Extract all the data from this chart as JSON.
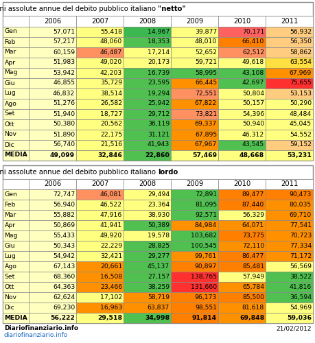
{
  "columns": [
    "",
    "2006",
    "2007",
    "2008",
    "2009",
    "2010",
    "2011"
  ],
  "rows_netto": [
    [
      "Gen",
      "57,071",
      "55,418",
      "14,967",
      "39,877",
      "70,171",
      "56,932"
    ],
    [
      "Feb",
      "57,217",
      "48,060",
      "18,353",
      "48,010",
      "66,410",
      "56,350"
    ],
    [
      "Mar",
      "60,159",
      "46,487",
      "17,214",
      "52,652",
      "62,512",
      "58,862"
    ],
    [
      "Apr",
      "51,983",
      "49,020",
      "20,173",
      "59,721",
      "49,618",
      "63,554"
    ],
    [
      "Mag",
      "53,942",
      "42,203",
      "16,739",
      "58,995",
      "43,108",
      "67,969"
    ],
    [
      "Giu",
      "46,855",
      "35,729",
      "23,595",
      "66,445",
      "42,697",
      "75,655"
    ],
    [
      "Lug",
      "46,832",
      "38,514",
      "19,294",
      "72,551",
      "50,804",
      "53,153"
    ],
    [
      "Ago",
      "51,276",
      "26,582",
      "25,942",
      "67,822",
      "50,157",
      "50,290"
    ],
    [
      "Set",
      "51,940",
      "18,727",
      "29,712",
      "73,821",
      "54,396",
      "48,484"
    ],
    [
      "Ott",
      "50,380",
      "20,562",
      "36,119",
      "69,337",
      "50,940",
      "45,045"
    ],
    [
      "Nov",
      "51,890",
      "22,175",
      "31,121",
      "67,895",
      "46,312",
      "54,552"
    ],
    [
      "Dic",
      "56,740",
      "21,516",
      "41,943",
      "67,967",
      "43,545",
      "59,152"
    ],
    [
      "MEDIA",
      "49,099",
      "32,846",
      "22,860",
      "57,469",
      "48,668",
      "53,231"
    ]
  ],
  "colors_netto": [
    [
      "#FFFFC0",
      "#FFFF80",
      "#3CB850",
      "#FFFF80",
      "#FF6060",
      "#FFCC80"
    ],
    [
      "#FFFFC0",
      "#FFFF80",
      "#50C050",
      "#FFFF80",
      "#FF8000",
      "#FFCC80"
    ],
    [
      "#FFFFC0",
      "#FF9060",
      "#FFFF80",
      "#FFFF80",
      "#FF9060",
      "#FFCC80"
    ],
    [
      "#FFFFC0",
      "#FFFF80",
      "#FFFF80",
      "#FFFF80",
      "#FFFF80",
      "#FFE040"
    ],
    [
      "#FFFFC0",
      "#FFFF80",
      "#50C050",
      "#50C050",
      "#50C050",
      "#FF9000"
    ],
    [
      "#FFFFC0",
      "#FFFF80",
      "#50C050",
      "#FF9000",
      "#50C050",
      "#FF3030"
    ],
    [
      "#FFFFC0",
      "#FFFF80",
      "#50C050",
      "#FF9060",
      "#FFFF80",
      "#FFCC80"
    ],
    [
      "#FFFFC0",
      "#FFFF80",
      "#50C050",
      "#FF9000",
      "#FFFF80",
      "#FFFF80"
    ],
    [
      "#FFFFC0",
      "#FFFF80",
      "#50C050",
      "#FF9060",
      "#FFFF80",
      "#FFFF80"
    ],
    [
      "#FFFFC0",
      "#FFFF80",
      "#50C050",
      "#FF9000",
      "#FFFF80",
      "#FFFF80"
    ],
    [
      "#FFFFC0",
      "#FFFF80",
      "#50C050",
      "#FF9000",
      "#FFFF80",
      "#FFFF80"
    ],
    [
      "#FFFFC0",
      "#FFFF80",
      "#50C050",
      "#FF9000",
      "#50C050",
      "#FFCC80"
    ],
    [
      "#FFFFC0",
      "#FFFF80",
      "#50C050",
      "#FFFF80",
      "#FFFF80",
      "#FFFF80"
    ]
  ],
  "rows_lordo": [
    [
      "Gen",
      "72,747",
      "46,081",
      "29,494",
      "72,891",
      "89,477",
      "90,473"
    ],
    [
      "Feb",
      "56,940",
      "46,522",
      "23,364",
      "81,095",
      "87,440",
      "80,035"
    ],
    [
      "Mar",
      "55,882",
      "47,916",
      "38,930",
      "92,571",
      "56,329",
      "69,710"
    ],
    [
      "Apr",
      "50,869",
      "41,941",
      "50,389",
      "84,984",
      "64,071",
      "77,541"
    ],
    [
      "Mag",
      "55,433",
      "49,920",
      "19,578",
      "103,682",
      "73,775",
      "70,723"
    ],
    [
      "Giu",
      "50,343",
      "22,229",
      "28,825",
      "100,545",
      "72,110",
      "77,334"
    ],
    [
      "Lug",
      "54,942",
      "32,421",
      "29,277",
      "99,761",
      "86,477",
      "71,172"
    ],
    [
      "Ago",
      "67,143",
      "20,661",
      "45,137",
      "90,897",
      "85,481",
      "56,569"
    ],
    [
      "Set",
      "68,360",
      "16,508",
      "27,157",
      "138,765",
      "57,949",
      "38,522"
    ],
    [
      "Ott",
      "64,363",
      "23,466",
      "38,259",
      "131,660",
      "65,784",
      "41,816"
    ],
    [
      "Nov",
      "62,624",
      "17,102",
      "58,719",
      "96,173",
      "85,500",
      "36,594"
    ],
    [
      "Dic",
      "69,230",
      "16,963",
      "63,837",
      "98,551",
      "81,618",
      "54,969"
    ],
    [
      "MEDIA",
      "56,222",
      "29,518",
      "34,998",
      "91,814",
      "69,848",
      "59,036"
    ]
  ],
  "colors_lordo": [
    [
      "#FFFFC0",
      "#FF9060",
      "#FFFF80",
      "#50C050",
      "#FF8000",
      "#FF8000"
    ],
    [
      "#FFFFC0",
      "#FFFF80",
      "#FFFF80",
      "#50C050",
      "#FF8000",
      "#FF9000"
    ],
    [
      "#FFFFC0",
      "#FFFF80",
      "#FFFF80",
      "#50C050",
      "#FFFF80",
      "#FF9000"
    ],
    [
      "#FFFFC0",
      "#FFFF80",
      "#50C050",
      "#FF9000",
      "#FF9000",
      "#FF9000"
    ],
    [
      "#FFFFC0",
      "#FFFF80",
      "#FFFF80",
      "#50C050",
      "#FF8000",
      "#FF9000"
    ],
    [
      "#FFFFC0",
      "#FFFF80",
      "#50C050",
      "#50C050",
      "#FF9000",
      "#FF9000"
    ],
    [
      "#FFFFC0",
      "#FFFF80",
      "#50C050",
      "#FF9000",
      "#FF8000",
      "#FF9000"
    ],
    [
      "#FFFFC0",
      "#FF9000",
      "#50C050",
      "#FF8000",
      "#FF8000",
      "#FFFF80"
    ],
    [
      "#FFFFC0",
      "#FF9000",
      "#50C050",
      "#FF3030",
      "#FFFF80",
      "#50C050"
    ],
    [
      "#FFFFC0",
      "#FF9000",
      "#50C050",
      "#FF3030",
      "#FF9000",
      "#50C050"
    ],
    [
      "#FFFFC0",
      "#FFFF80",
      "#FF9000",
      "#FF8000",
      "#FF8000",
      "#50C050"
    ],
    [
      "#FFFFC0",
      "#FF9000",
      "#FF9000",
      "#FF8000",
      "#FF9000",
      "#FFFF80"
    ],
    [
      "#FFFFC0",
      "#FFFF80",
      "#50C050",
      "#FF8000",
      "#FF9000",
      "#FFFF80"
    ]
  ],
  "title_netto_plain": "Variazioni assolute annue del debito pubblico italiano ",
  "title_netto_bold": "\"netto\"",
  "title_lordo_plain": "Variazioni assolute annue del debito pubblico italiano ",
  "title_lordo_bold": "lordo",
  "footer_left1": "Diariofinanziario.info",
  "footer_left2": "diariofinanziario.info",
  "footer_right": "21/02/2012",
  "label_col_color": "#FFFFC0",
  "header_color": "#FFFFFF",
  "border_color": "#888888",
  "bg_color": "#FFFFFF"
}
